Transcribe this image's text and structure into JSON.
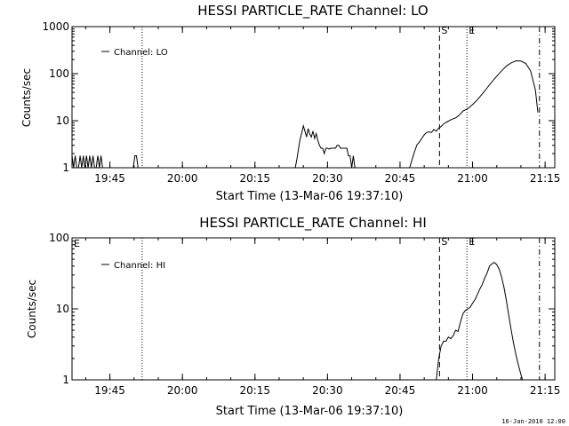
{
  "footer_date": "16-Jan-2010 12:00",
  "chart_data": [
    {
      "type": "line",
      "title": "HESSI PARTICLE_RATE Channel: LO",
      "xlabel": "Start Time (13-Mar-06 19:37:10)",
      "ylabel": "Counts/sec",
      "xlim": [
        "19:37:10",
        "21:17:00"
      ],
      "ylim": [
        1,
        1000
      ],
      "yscale": "log",
      "x_ticks": [
        "19:45",
        "20:00",
        "20:15",
        "20:30",
        "20:45",
        "21:00",
        "21:15"
      ],
      "y_ticks": [
        "1",
        "10",
        "100",
        "1000"
      ],
      "legend": "top-left",
      "series": [
        {
          "name": "Channel: LO",
          "x": [
            "19:37:10",
            "19:37:30",
            "19:37:50",
            "19:38:10",
            "19:38:30",
            "19:38:50",
            "19:39:10",
            "19:39:30",
            "19:39:50",
            "19:40:10",
            "19:40:30",
            "19:40:50",
            "19:41:10",
            "19:41:30",
            "19:41:50",
            "19:42:10",
            "19:42:30",
            "19:42:50",
            "19:43:10",
            "19:43:30",
            "19:49:50",
            "19:50:10",
            "19:50:30",
            "19:50:50",
            "19:51:10",
            "20:23:20",
            "20:23:40",
            "20:24:00",
            "20:24:20",
            "20:24:40",
            "20:25:00",
            "20:25:20",
            "20:25:40",
            "20:26:00",
            "20:26:20",
            "20:26:40",
            "20:27:00",
            "20:27:20",
            "20:27:40",
            "20:28:00",
            "20:28:20",
            "20:28:40",
            "20:29:00",
            "20:29:20",
            "20:29:40",
            "20:30:00",
            "20:30:20",
            "20:30:40",
            "20:31:00",
            "20:31:20",
            "20:31:40",
            "20:32:00",
            "20:32:20",
            "20:32:40",
            "20:33:00",
            "20:33:20",
            "20:33:40",
            "20:34:00",
            "20:34:20",
            "20:34:40",
            "20:35:00",
            "20:35:20",
            "20:35:40",
            "20:36:00",
            "20:47:00",
            "20:47:30",
            "20:48:00",
            "20:48:30",
            "20:49:00",
            "20:49:30",
            "20:50:00",
            "20:50:30",
            "20:51:00",
            "20:51:30",
            "20:52:00",
            "20:52:30",
            "20:53:00",
            "20:53:30",
            "20:54:00",
            "20:54:30",
            "20:55:00",
            "20:55:30",
            "20:56:00",
            "20:56:30",
            "20:57:00",
            "20:57:30",
            "20:58:00",
            "20:58:30",
            "20:59:00",
            "21:00:00",
            "21:01:00",
            "21:02:00",
            "21:03:00",
            "21:04:00",
            "21:05:00",
            "21:06:00",
            "21:07:00",
            "21:08:00",
            "21:09:00",
            "21:10:00",
            "21:11:00",
            "21:12:00",
            "21:13:00",
            "21:13:30"
          ],
          "y": [
            1.8,
            1,
            1.8,
            1,
            1,
            1.8,
            1,
            1.8,
            1,
            1.8,
            1,
            1.8,
            1,
            1.8,
            1,
            1,
            1.8,
            1,
            1.8,
            1,
            1,
            1.8,
            1.8,
            1,
            1,
            1,
            1.5,
            2.5,
            4,
            5.5,
            7.8,
            6,
            4.5,
            6.8,
            5.2,
            4.5,
            6,
            4.2,
            5.3,
            3.8,
            3,
            2.6,
            2.6,
            2,
            2.6,
            2.6,
            2.5,
            2.6,
            2.6,
            2.6,
            2.6,
            3,
            3,
            2.6,
            2.6,
            2.6,
            2.6,
            2.6,
            1.8,
            1.8,
            1,
            1.8,
            1,
            1,
            1,
            1.5,
            2.2,
            3.1,
            3.5,
            4.2,
            5,
            5.6,
            5.8,
            5.6,
            6.5,
            6,
            7,
            7.5,
            8.5,
            9.2,
            9.8,
            10.5,
            11,
            11.5,
            12.5,
            14,
            16,
            17,
            18,
            22,
            28,
            37,
            50,
            67,
            88,
            115,
            145,
            170,
            188,
            185,
            165,
            115,
            45,
            15
          ]
        }
      ],
      "markers": [
        {
          "label": "",
          "x": "19:51:40",
          "style": "dotted"
        },
        {
          "label": "S",
          "x": "20:53:10",
          "style": "dashed"
        },
        {
          "label": "E",
          "x": "20:58:50",
          "style": "dotted"
        },
        {
          "label": "",
          "x": "21:13:50",
          "style": "dashdot"
        }
      ]
    },
    {
      "type": "line",
      "title": "HESSI PARTICLE_RATE Channel: HI",
      "xlabel": "Start Time (13-Mar-06 19:37:10)",
      "ylabel": "Counts/sec",
      "xlim": [
        "19:37:10",
        "21:17:00"
      ],
      "ylim": [
        1,
        100
      ],
      "yscale": "log",
      "x_ticks": [
        "19:45",
        "20:00",
        "20:15",
        "20:30",
        "20:45",
        "21:00",
        "21:15"
      ],
      "y_ticks": [
        "1",
        "10",
        "100"
      ],
      "corner_label": "E",
      "legend": "top-left",
      "series": [
        {
          "name": "Channel: HI",
          "x": [
            "20:52:30",
            "20:53:00",
            "20:53:30",
            "20:54:00",
            "20:54:30",
            "20:55:00",
            "20:55:30",
            "20:56:00",
            "20:56:30",
            "20:57:00",
            "20:57:30",
            "20:58:00",
            "20:58:30",
            "20:59:00",
            "20:59:30",
            "21:00:00",
            "21:00:30",
            "21:01:00",
            "21:01:30",
            "21:02:00",
            "21:02:30",
            "21:03:00",
            "21:03:30",
            "21:04:00",
            "21:04:30",
            "21:05:00",
            "21:05:30",
            "21:06:00",
            "21:06:30",
            "21:07:00",
            "21:07:30",
            "21:08:00",
            "21:08:30",
            "21:09:00",
            "21:09:30",
            "21:10:00",
            "21:10:20"
          ],
          "y": [
            1,
            2,
            3,
            3.5,
            3.5,
            4,
            3.8,
            4.2,
            5,
            4.8,
            6.5,
            8.5,
            9.5,
            10,
            10.5,
            12,
            13.5,
            16,
            19,
            22,
            27,
            32,
            40,
            43,
            45,
            42,
            36,
            28,
            20,
            13,
            8,
            5,
            3.2,
            2.2,
            1.6,
            1.2,
            1
          ]
        }
      ],
      "markers": [
        {
          "label": "",
          "x": "19:51:40",
          "style": "dotted"
        },
        {
          "label": "S",
          "x": "20:53:10",
          "style": "dashed"
        },
        {
          "label": "E",
          "x": "20:58:50",
          "style": "dotted"
        },
        {
          "label": "",
          "x": "21:13:50",
          "style": "dashdot"
        }
      ]
    }
  ]
}
